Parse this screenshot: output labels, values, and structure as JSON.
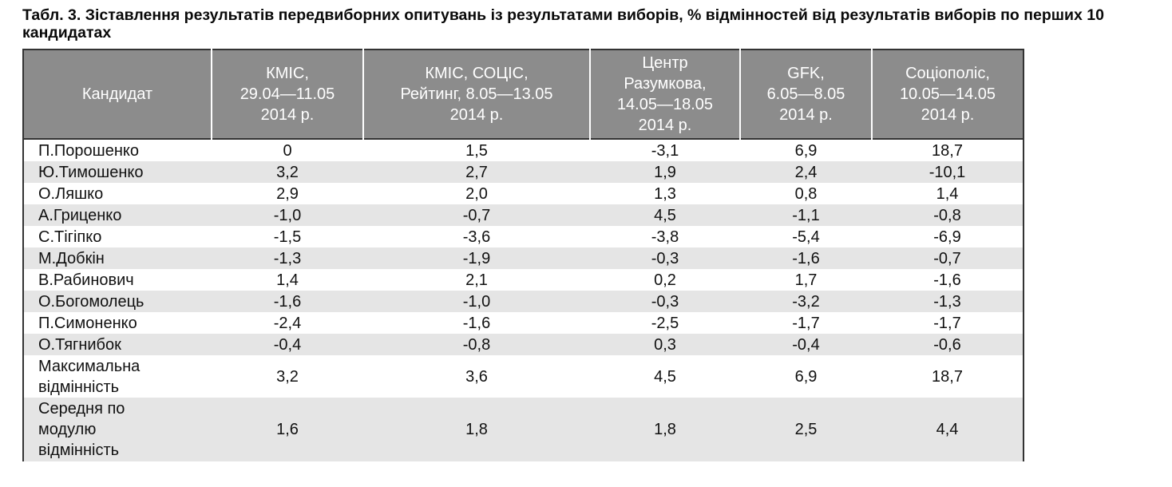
{
  "caption": "Табл. 3. Зіставлення результатів передвиборних опитувань із результатами виборів, % відмінностей від результатів виборів по перших 10 кандидатах",
  "table": {
    "headers": [
      [
        "Кандидат"
      ],
      [
        "КМІС,",
        "29.04—11.05",
        "2014 р."
      ],
      [
        "КМІС, СОЦІС,",
        "Рейтинг, 8.05—13.05",
        "2014 р."
      ],
      [
        "Центр",
        "Разумкова,",
        "14.05—18.05",
        "2014 р."
      ],
      [
        "GFK,",
        "6.05—8.05",
        "2014 р."
      ],
      [
        "Соціополіс,",
        "10.05—14.05",
        "2014 р."
      ]
    ],
    "rows": [
      {
        "name": [
          "П.Порошенко"
        ],
        "values": [
          "0",
          "1,5",
          "-3,1",
          "6,9",
          "18,7"
        ]
      },
      {
        "name": [
          "Ю.Тимошенко"
        ],
        "values": [
          "3,2",
          "2,7",
          "1,9",
          "2,4",
          "-10,1"
        ]
      },
      {
        "name": [
          "О.Ляшко"
        ],
        "values": [
          "2,9",
          "2,0",
          "1,3",
          "0,8",
          "1,4"
        ]
      },
      {
        "name": [
          "А.Гриценко"
        ],
        "values": [
          "-1,0",
          "-0,7",
          "4,5",
          "-1,1",
          "-0,8"
        ]
      },
      {
        "name": [
          "С.Тігіпко"
        ],
        "values": [
          "-1,5",
          "-3,6",
          "-3,8",
          "-5,4",
          "-6,9"
        ]
      },
      {
        "name": [
          "М.Добкін"
        ],
        "values": [
          "-1,3",
          "-1,9",
          "-0,3",
          "-1,6",
          "-0,7"
        ]
      },
      {
        "name": [
          "В.Рабинович"
        ],
        "values": [
          "1,4",
          "2,1",
          "0,2",
          "1,7",
          "-1,6"
        ]
      },
      {
        "name": [
          "О.Богомолець"
        ],
        "values": [
          "-1,6",
          "-1,0",
          "-0,3",
          "-3,2",
          "-1,3"
        ]
      },
      {
        "name": [
          "П.Симоненко"
        ],
        "values": [
          "-2,4",
          "-1,6",
          "-2,5",
          "-1,7",
          "-1,7"
        ]
      },
      {
        "name": [
          "О.Тягнибок"
        ],
        "values": [
          "-0,4",
          "-0,8",
          "0,3",
          "-0,4",
          "-0,6"
        ]
      },
      {
        "name": [
          "Максимальна",
          "відмінність"
        ],
        "values": [
          "3,2",
          "3,6",
          "4,5",
          "6,9",
          "18,7"
        ]
      },
      {
        "name": [
          "Середня по",
          "модулю",
          "відмінність"
        ],
        "values": [
          "1,6",
          "1,8",
          "1,8",
          "2,5",
          "4,4"
        ]
      }
    ]
  }
}
